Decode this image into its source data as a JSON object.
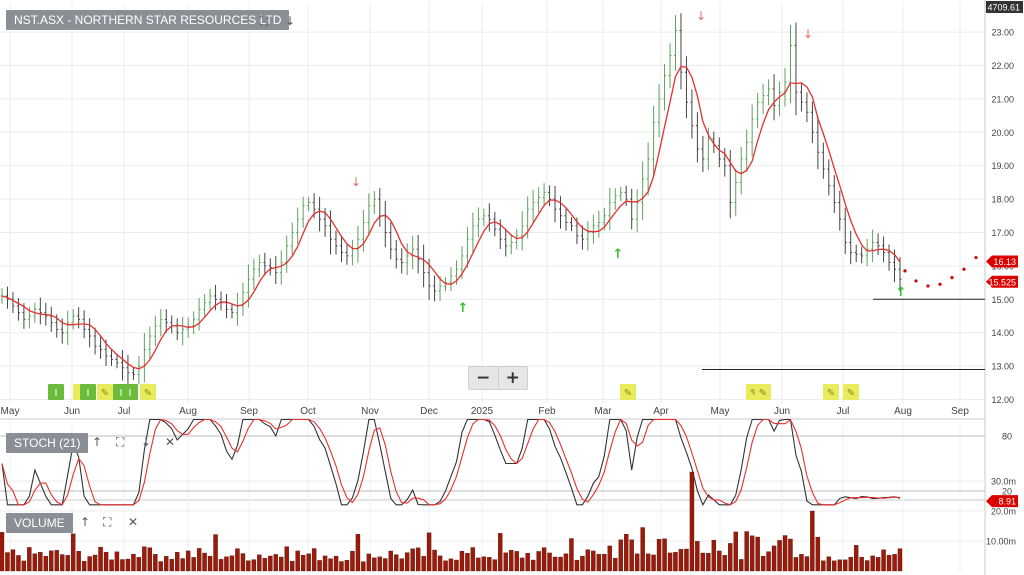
{
  "panels": {
    "price": {
      "label": "NST.ASX - NORTHERN STAR RESOURCES LTD"
    },
    "stoch": {
      "label": "STOCH (21)"
    },
    "volume": {
      "label": "VOLUME"
    }
  },
  "toolbar_icons": [
    "expand-icon",
    "arrow-down-icon",
    "arrow-up-icon",
    "close-icon"
  ],
  "zoom": {
    "minus": "−",
    "plus": "+"
  },
  "labels": {
    "top_right_value": "4709.61"
  },
  "colors": {
    "price_bar": "#5fa05f",
    "moving_average": "#e53030",
    "projection": "#d40000",
    "stoch_k": "#333333",
    "stoch_d": "#e53030",
    "volume_bar": "#9b1a0a",
    "up_marker": "#2fbf2f",
    "down_marker": "#e56b6b",
    "value_tag": "#dd0000"
  },
  "chart_data": [
    {
      "type": "ohlc",
      "title": "NST.ASX - NORTHERN STAR RESOURCES LTD",
      "x_ticks": [
        "May",
        "Jun",
        "Jul",
        "Aug",
        "Sep",
        "Oct",
        "Nov",
        "Dec",
        "2025",
        "Feb",
        "Mar",
        "Apr",
        "May",
        "Jun",
        "Jul",
        "Aug",
        "Sep"
      ],
      "y_ticks": [
        "12.00",
        "13.00",
        "14.00",
        "15.00",
        "16.00",
        "17.00",
        "18.00",
        "19.00",
        "20.00",
        "21.00",
        "22.00",
        "23.00"
      ],
      "ylim": [
        12,
        24
      ],
      "close_series": [
        15.1,
        15.0,
        14.8,
        14.6,
        14.4,
        14.5,
        14.7,
        14.6,
        14.5,
        14.3,
        14.1,
        14.0,
        14.3,
        14.5,
        14.4,
        14.1,
        13.9,
        13.6,
        13.5,
        13.3,
        13.2,
        13.1,
        12.95,
        12.8,
        12.75,
        13.0,
        13.5,
        13.9,
        14.2,
        14.4,
        14.3,
        14.2,
        14.0,
        14.1,
        14.2,
        14.4,
        14.7,
        14.9,
        15.1,
        15.0,
        14.9,
        14.7,
        14.6,
        14.8,
        15.2,
        15.6,
        15.9,
        16.1,
        16.0,
        15.95,
        15.8,
        16.1,
        16.6,
        17.0,
        17.4,
        17.8,
        17.9,
        17.7,
        17.4,
        17.2,
        16.8,
        16.6,
        16.4,
        16.3,
        16.5,
        16.8,
        17.3,
        17.8,
        18.0,
        17.5,
        17.0,
        16.5,
        16.2,
        16.1,
        16.3,
        16.5,
        16.2,
        15.8,
        15.4,
        15.25,
        15.4,
        15.5,
        15.7,
        15.9,
        16.3,
        16.8,
        17.2,
        17.4,
        17.5,
        17.4,
        17.1,
        16.8,
        16.6,
        16.7,
        16.9,
        17.2,
        17.7,
        17.9,
        18.05,
        18.2,
        18.0,
        17.7,
        17.5,
        17.3,
        17.2,
        16.9,
        16.8,
        17.0,
        17.2,
        17.3,
        17.5,
        17.9,
        18.1,
        18.2,
        18.0,
        17.4,
        17.9,
        18.6,
        19.2,
        20.3,
        21.0,
        21.7,
        22.3,
        23.05,
        21.8,
        20.9,
        20.2,
        19.5,
        19.2,
        19.8,
        19.6,
        19.2,
        19.0,
        17.9,
        18.5,
        19.2,
        19.7,
        20.4,
        20.9,
        21.1,
        21.3,
        20.8,
        21.2,
        21.5,
        22.6,
        21.2,
        20.9,
        20.6,
        20.0,
        19.4,
        18.9,
        18.4,
        17.9,
        17.4,
        16.7,
        16.4,
        16.35,
        16.3,
        16.5,
        16.7,
        16.6,
        16.4,
        16.1,
        15.9,
        15.6
      ]
    },
    {
      "type": "line",
      "title": "STOCH (21)",
      "y_ticks": [
        "20",
        "80"
      ],
      "ylim": [
        0,
        100
      ],
      "value_label": "8.91"
    },
    {
      "type": "bar",
      "title": "VOLUME",
      "y_ticks": [
        "10.00m",
        "20.0m",
        "30.0m"
      ],
      "ylim": [
        0,
        35
      ]
    }
  ],
  "price_tags": {
    "projection": "16.13",
    "last": "15.525"
  },
  "stoch_tag": "8.91"
}
